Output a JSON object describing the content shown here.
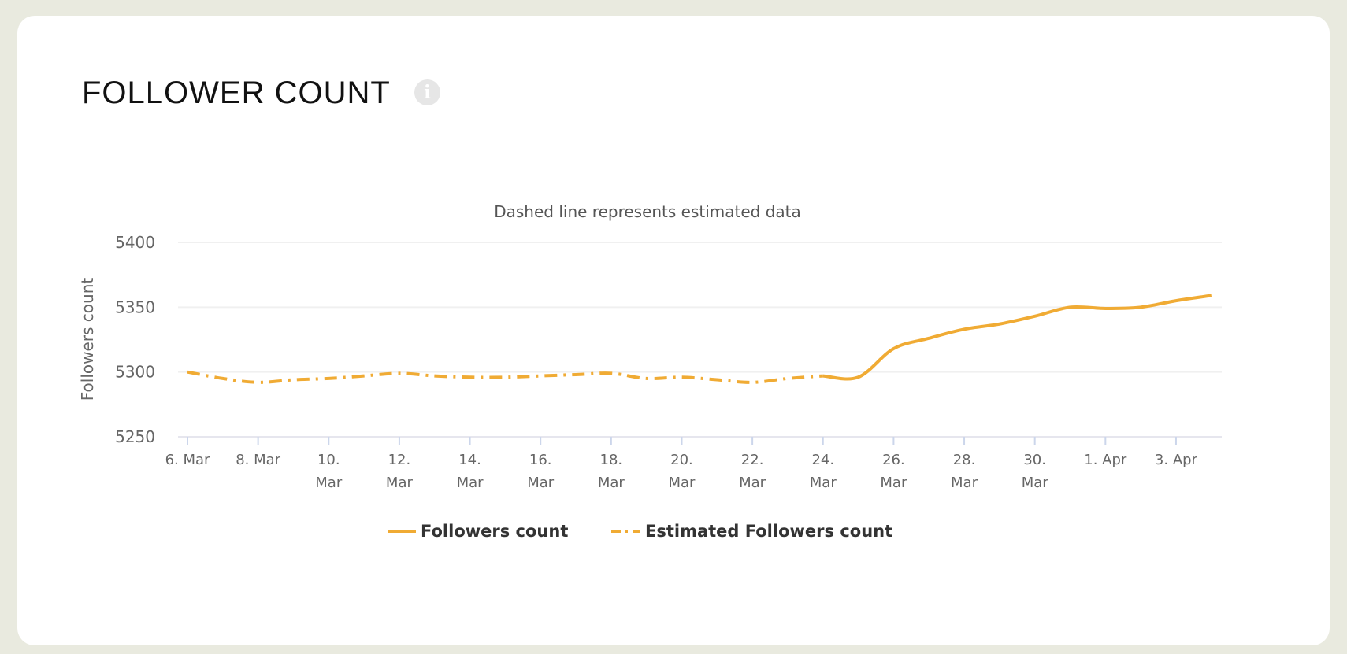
{
  "card": {
    "title": "FOLLOWER COUNT",
    "info_icon": "info-icon"
  },
  "chart_data": {
    "type": "line",
    "subtitle": "Dashed line represents estimated data",
    "ylabel": "Followers count",
    "ylim": [
      5250,
      5400
    ],
    "yticks": [
      "5250",
      "5300",
      "5350",
      "5400"
    ],
    "xticks": [
      {
        "l1": "6. Mar",
        "l2": ""
      },
      {
        "l1": "8. Mar",
        "l2": ""
      },
      {
        "l1": "10.",
        "l2": "Mar"
      },
      {
        "l1": "12.",
        "l2": "Mar"
      },
      {
        "l1": "14.",
        "l2": "Mar"
      },
      {
        "l1": "16.",
        "l2": "Mar"
      },
      {
        "l1": "18.",
        "l2": "Mar"
      },
      {
        "l1": "20.",
        "l2": "Mar"
      },
      {
        "l1": "22.",
        "l2": "Mar"
      },
      {
        "l1": "24.",
        "l2": "Mar"
      },
      {
        "l1": "26.",
        "l2": "Mar"
      },
      {
        "l1": "28.",
        "l2": "Mar"
      },
      {
        "l1": "30.",
        "l2": "Mar"
      },
      {
        "l1": "1. Apr",
        "l2": ""
      },
      {
        "l1": "3. Apr",
        "l2": ""
      }
    ],
    "grid": true,
    "legend_position": "bottom",
    "color": "#f0ab34",
    "series": [
      {
        "name": "Followers count",
        "style": "solid",
        "x": [
          "24 Mar",
          "25 Mar",
          "26 Mar",
          "27 Mar",
          "28 Mar",
          "29 Mar",
          "30 Mar",
          "31 Mar",
          "1 Apr",
          "2 Apr",
          "3 Apr",
          "4 Apr"
        ],
        "values": [
          5297,
          5296,
          5318,
          5326,
          5333,
          5337,
          5343,
          5350,
          5349,
          5350,
          5355,
          5359
        ]
      },
      {
        "name": "Estimated Followers count",
        "style": "dash-dot",
        "x": [
          "6 Mar",
          "7 Mar",
          "8 Mar",
          "9 Mar",
          "10 Mar",
          "11 Mar",
          "12 Mar",
          "13 Mar",
          "14 Mar",
          "15 Mar",
          "16 Mar",
          "17 Mar",
          "18 Mar",
          "19 Mar",
          "20 Mar",
          "21 Mar",
          "22 Mar",
          "23 Mar",
          "24 Mar"
        ],
        "values": [
          5300,
          5295,
          5292,
          5294,
          5295,
          5297,
          5299,
          5297,
          5296,
          5296,
          5297,
          5298,
          5299,
          5295,
          5296,
          5294,
          5292,
          5295,
          5297
        ]
      }
    ]
  }
}
